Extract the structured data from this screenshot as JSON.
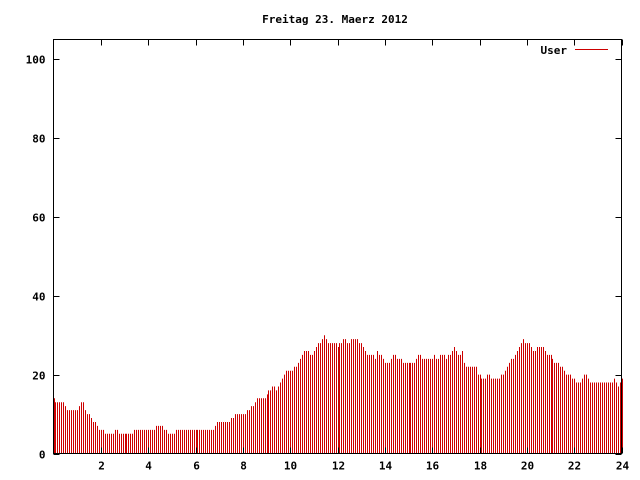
{
  "chart_data": {
    "type": "bar",
    "title": "Freitag 23. Maerz 2012",
    "xlabel": "",
    "ylabel": "",
    "xlim": [
      0,
      24
    ],
    "ylim": [
      0,
      105
    ],
    "x_ticks": [
      2,
      4,
      6,
      8,
      10,
      12,
      14,
      16,
      18,
      20,
      22,
      24
    ],
    "y_ticks": [
      0,
      20,
      40,
      60,
      80,
      100
    ],
    "grid": false,
    "legend_position": "top-right",
    "series": [
      {
        "name": "User",
        "color": "#cc0000",
        "points_per_hour": 12,
        "values": [
          14,
          13,
          13,
          13,
          13,
          13,
          12,
          11,
          11,
          11,
          11,
          11,
          11,
          12,
          13,
          13,
          11,
          10,
          10,
          9,
          8,
          8,
          7,
          6,
          6,
          6,
          5,
          5,
          5,
          5,
          5,
          6,
          6,
          5,
          5,
          5,
          5,
          5,
          5,
          5,
          5,
          6,
          6,
          6,
          6,
          6,
          6,
          6,
          6,
          6,
          6,
          6,
          7,
          7,
          7,
          7,
          6,
          6,
          5,
          5,
          5,
          5,
          6,
          6,
          6,
          6,
          6,
          6,
          6,
          6,
          6,
          6,
          6,
          6,
          6,
          6,
          6,
          6,
          6,
          6,
          6,
          6,
          7,
          8,
          8,
          8,
          8,
          8,
          8,
          8,
          9,
          9,
          10,
          10,
          10,
          10,
          10,
          10,
          11,
          11,
          12,
          12,
          13,
          14,
          14,
          14,
          14,
          14,
          15,
          16,
          16,
          17,
          17,
          16,
          17,
          18,
          19,
          20,
          21,
          21,
          21,
          21,
          22,
          22,
          23,
          24,
          25,
          26,
          26,
          26,
          25,
          25,
          26,
          27,
          28,
          28,
          29,
          30,
          29,
          28,
          28,
          28,
          28,
          28,
          27,
          28,
          28,
          29,
          29,
          28,
          28,
          29,
          29,
          29,
          29,
          28,
          28,
          27,
          26,
          25,
          25,
          25,
          25,
          24,
          26,
          25,
          25,
          24,
          23,
          23,
          23,
          24,
          25,
          25,
          24,
          24,
          24,
          23,
          23,
          23,
          23,
          23,
          23,
          23,
          24,
          25,
          25,
          24,
          24,
          24,
          24,
          24,
          24,
          25,
          24,
          24,
          25,
          25,
          25,
          24,
          25,
          25,
          26,
          27,
          26,
          25,
          25,
          26,
          23,
          22,
          22,
          22,
          22,
          22,
          22,
          20,
          20,
          19,
          19,
          19,
          20,
          20,
          19,
          19,
          19,
          19,
          19,
          20,
          20,
          21,
          22,
          23,
          24,
          24,
          25,
          26,
          27,
          28,
          29,
          28,
          28,
          28,
          27,
          26,
          26,
          27,
          27,
          27,
          27,
          26,
          25,
          25,
          25,
          24,
          23,
          23,
          23,
          22,
          22,
          21,
          20,
          20,
          20,
          19,
          19,
          18,
          18,
          18,
          19,
          20,
          20,
          19,
          18,
          18,
          18,
          18,
          18,
          18,
          18,
          18,
          18,
          18,
          18,
          18,
          19,
          18,
          17,
          18,
          19
        ]
      }
    ]
  }
}
